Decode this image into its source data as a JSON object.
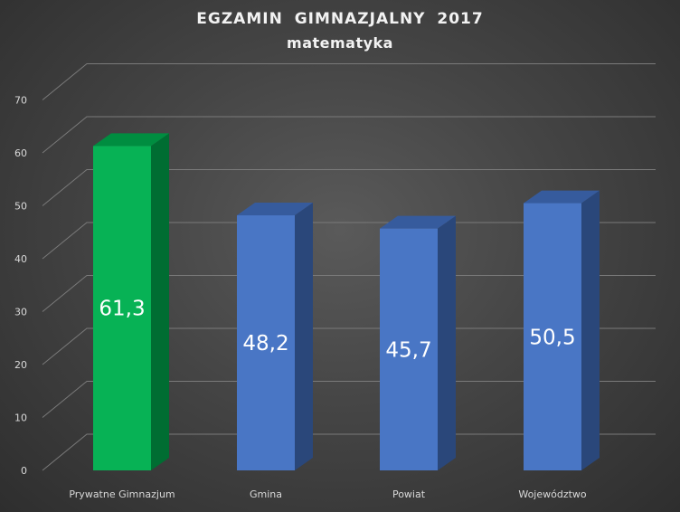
{
  "chart_data": {
    "type": "bar",
    "title": "EGZAMIN GIMNAZJALNY 2017",
    "subtitle": "matematyka",
    "categories": [
      "Prywatne Gimnazjum",
      "Gmina",
      "Powiat",
      "Województwo"
    ],
    "values": [
      61.3,
      48.2,
      45.7,
      50.5
    ],
    "value_labels": [
      "61,3",
      "48,2",
      "45,7",
      "50,5"
    ],
    "ylim": [
      0,
      70
    ],
    "yticks": [
      0,
      10,
      20,
      30,
      40,
      50,
      60,
      70
    ],
    "xlabel": "",
    "ylabel": "",
    "grid": true,
    "style": "3d-column",
    "colors": {
      "highlight_bar": "#00b050",
      "bars": "#4472c4",
      "background": "#404040"
    },
    "bar_colors": [
      "#00b050",
      "#4472c4",
      "#4472c4",
      "#4472c4"
    ]
  }
}
